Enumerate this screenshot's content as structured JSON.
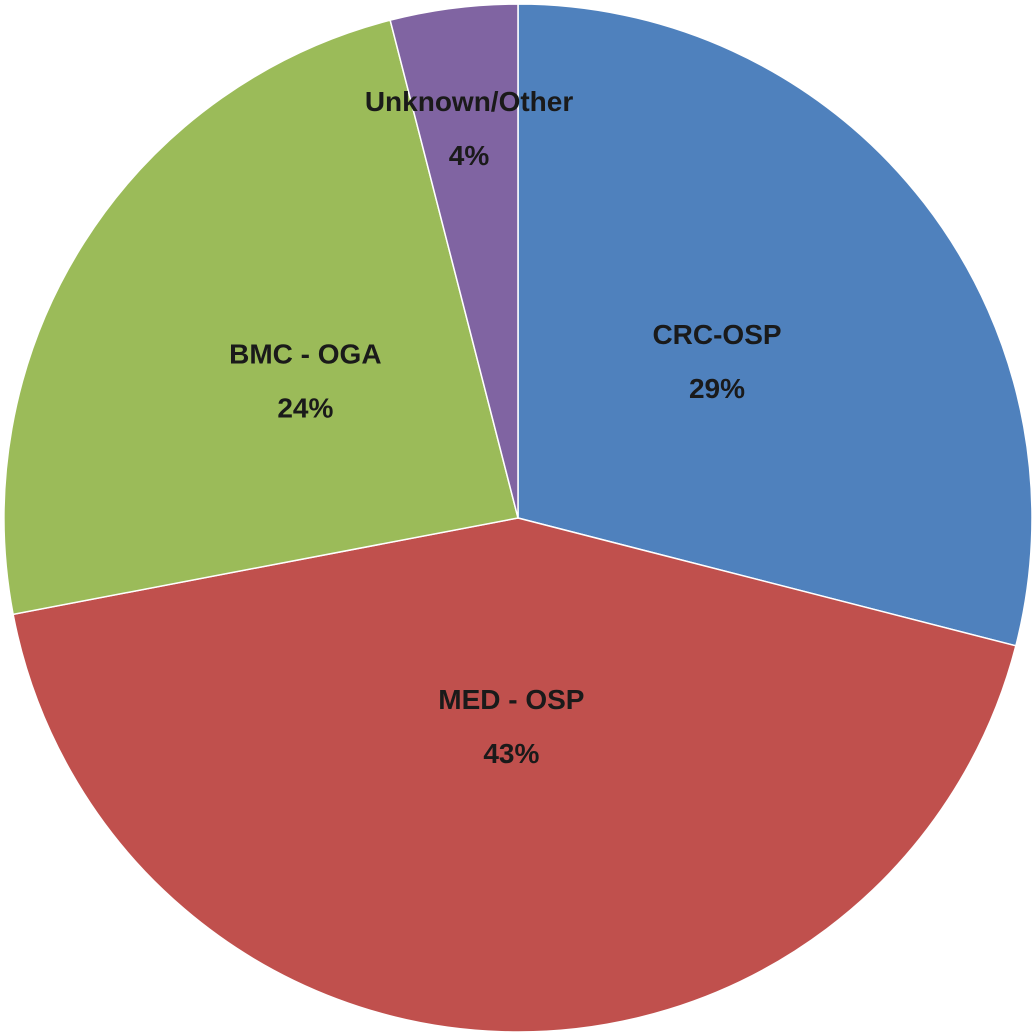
{
  "chart_data": {
    "type": "pie",
    "categories": [
      "CRC-OSP",
      "MED - OSP",
      "BMC - OGA",
      "Unknown/Other"
    ],
    "values": [
      29,
      43,
      24,
      4
    ],
    "value_labels": [
      "29%",
      "43%",
      "24%",
      "4%"
    ],
    "colors": [
      "#4f81bd",
      "#c0504d",
      "#9bbb59",
      "#8064a2"
    ]
  }
}
